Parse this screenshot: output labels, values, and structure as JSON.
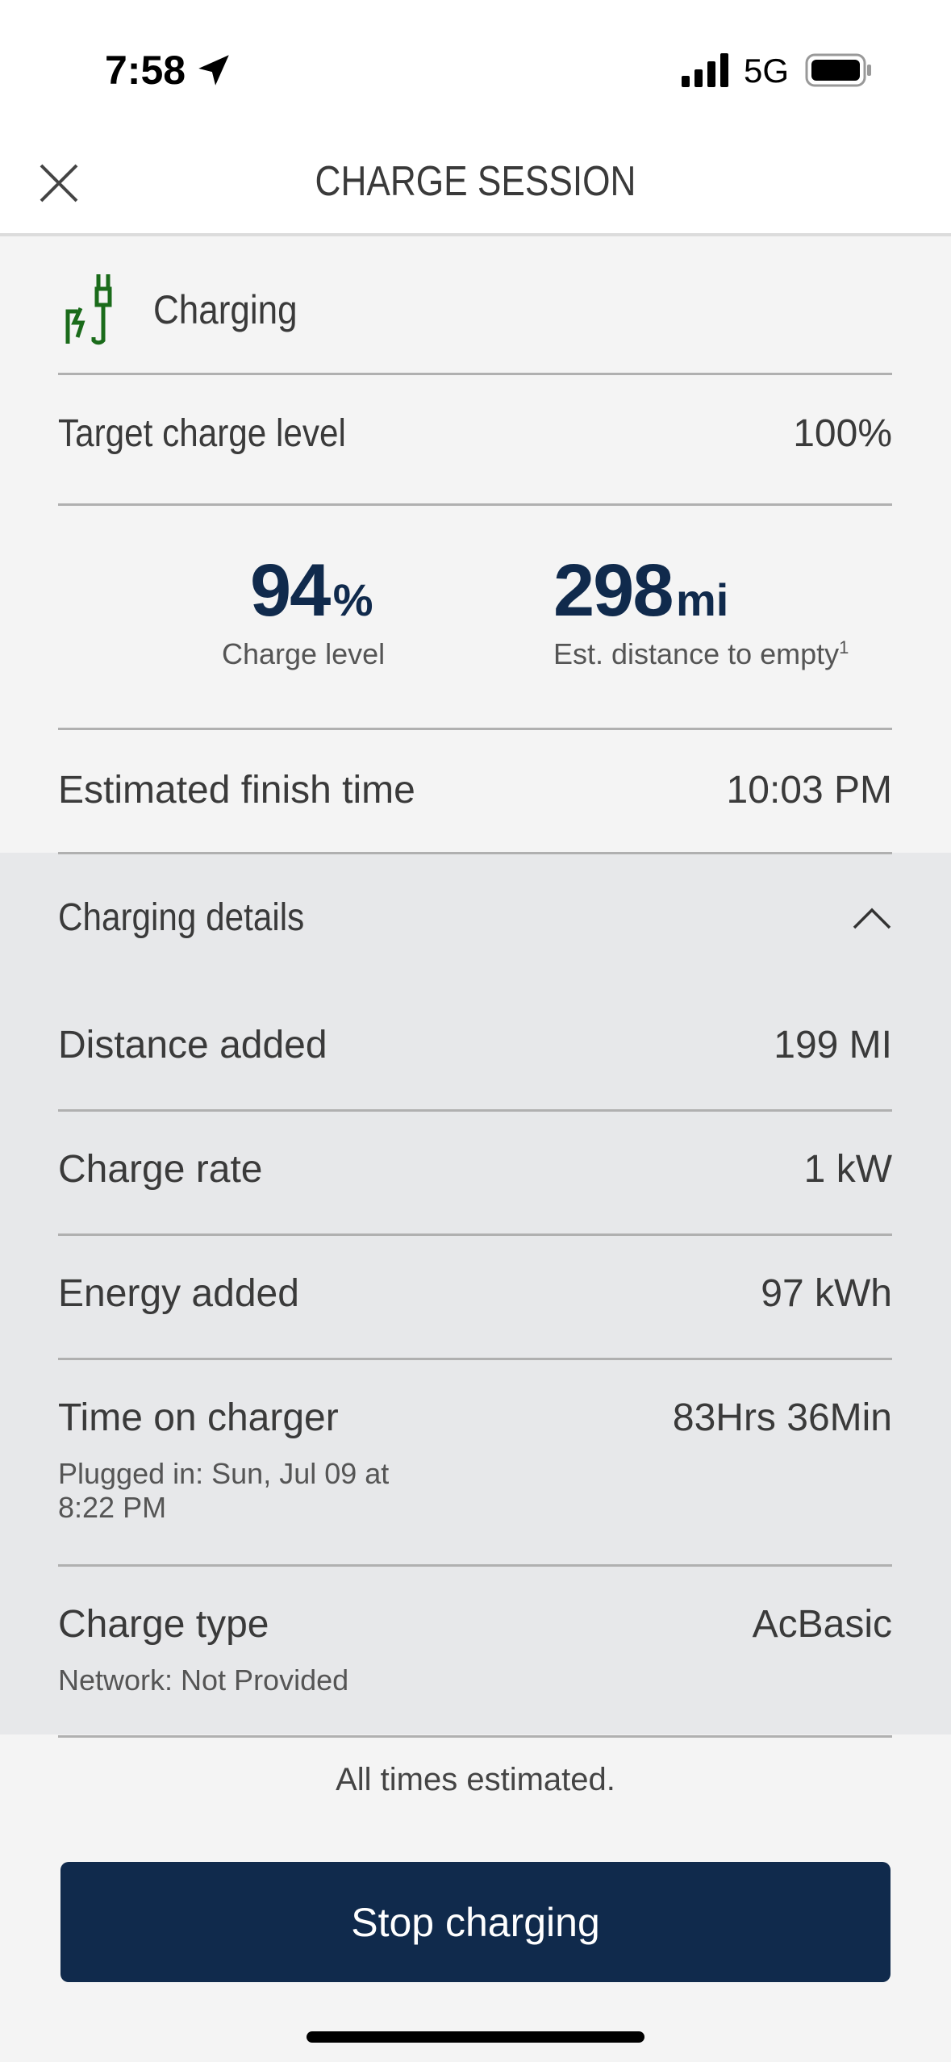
{
  "status_bar": {
    "time": "7:58",
    "network": "5G"
  },
  "header": {
    "title": "CHARGE SESSION"
  },
  "status": {
    "label": "Charging",
    "icon": "plug-charging-icon",
    "icon_color": "#1a6b1a"
  },
  "target": {
    "label": "Target charge level",
    "value": "100%"
  },
  "charge_level": {
    "value": "94",
    "unit": "%",
    "label": "Charge level"
  },
  "range": {
    "value": "298",
    "unit": "mi",
    "label": "Est. distance to empty",
    "footnote": "1"
  },
  "finish": {
    "label": "Estimated finish time",
    "value": "10:03 PM"
  },
  "details": {
    "title": "Charging details",
    "distance": {
      "label": "Distance added",
      "value": "199 MI"
    },
    "rate": {
      "label": "Charge rate",
      "value": "1 kW"
    },
    "energy": {
      "label": "Energy added",
      "value": "97 kWh"
    },
    "time_on": {
      "label": "Time on charger",
      "value": "83Hrs 36Min",
      "sub1": "Plugged in: Sun, Jul 09 at",
      "sub2": "8:22 PM"
    },
    "type": {
      "label": "Charge type",
      "value": "AcBasic",
      "sub": "Network: Not Provided"
    }
  },
  "footer_note": "All times estimated.",
  "stop_button": "Stop charging",
  "colors": {
    "primary": "#102a4c",
    "details_bg": "#e7e8ea",
    "page_bg": "#f4f4f4"
  }
}
